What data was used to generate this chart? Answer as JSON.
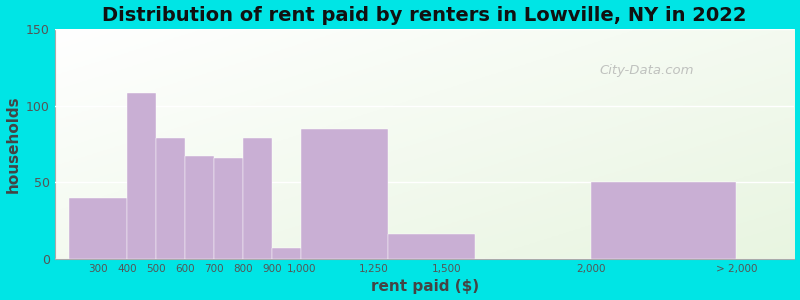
{
  "title": "Distribution of rent paid by renters in Lowville, NY in 2022",
  "xlabel": "rent paid ($)",
  "ylabel": "households",
  "bar_color": "#c9afd4",
  "background_outer": "#00e5e5",
  "ylim": [
    0,
    150
  ],
  "yticks": [
    0,
    50,
    100,
    150
  ],
  "watermark": "City-Data.com",
  "title_fontsize": 14,
  "axis_label_fontsize": 11,
  "bin_edges": [
    200,
    400,
    500,
    600,
    700,
    800,
    900,
    1000,
    1300,
    1600,
    2000,
    2500
  ],
  "values": [
    40,
    108,
    79,
    67,
    66,
    79,
    7,
    85,
    16,
    0,
    50
  ],
  "tick_positions": [
    300,
    400,
    500,
    600,
    700,
    800,
    900,
    1000,
    1250,
    1500,
    2000,
    2500
  ],
  "tick_labels": [
    "300",
    "400",
    "500",
    "600",
    "700",
    "800",
    "900",
    "1,000",
    "1,250",
    "1,500",
    "2,000",
    "> 2,000"
  ],
  "xlim": [
    150,
    2700
  ]
}
